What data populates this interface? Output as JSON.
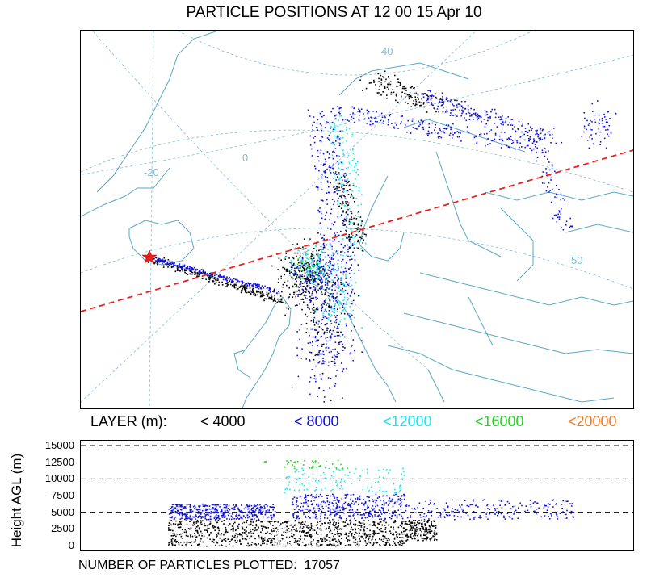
{
  "header": {
    "title": "PARTICLE POSITIONS AT 12 00  15 Apr 10"
  },
  "map": {
    "graticule_labels": [
      "40",
      "0",
      "-20",
      "50"
    ],
    "colors": {
      "coast": "#5aa7c8",
      "grid": "#7fbcd6",
      "section_line": "#e8201c",
      "source": "#e8201c"
    }
  },
  "legend": {
    "title": "LAYER (m):",
    "layers": [
      {
        "label": "< 4000",
        "color": "#000000"
      },
      {
        "label": "< 8000",
        "color": "#1010e0"
      },
      {
        "label": "<12000",
        "color": "#19e6f0"
      },
      {
        "label": "<16000",
        "color": "#22d422"
      },
      {
        "label": "<20000",
        "color": "#f07820"
      }
    ]
  },
  "chart_data": {
    "type": "scatter",
    "ylabel": "Height AGL (m)",
    "yticks": [
      0,
      2500,
      5000,
      7500,
      10000,
      12500,
      15000
    ],
    "ylim": [
      0,
      15000
    ],
    "dashed_gridlines": [
      5000,
      10000,
      15000
    ],
    "series": [
      {
        "layer": "< 4000",
        "height_range": [
          0,
          4000
        ]
      },
      {
        "layer": "< 8000",
        "height_range": [
          4000,
          8000
        ]
      },
      {
        "layer": "<12000",
        "height_range": [
          8000,
          12000
        ]
      },
      {
        "layer": "<16000",
        "height_range": [
          12000,
          13000
        ]
      }
    ]
  },
  "footer": {
    "label": "NUMBER OF PARTICLES PLOTTED:",
    "count": "17057"
  }
}
